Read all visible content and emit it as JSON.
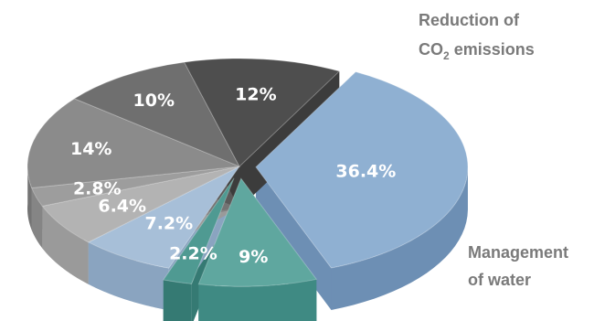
{
  "chart_data": {
    "type": "pie",
    "title": "",
    "style": "3d exploded pie",
    "slices": [
      {
        "value": 36.4,
        "label": "36.4%",
        "color": "#8fb0d2",
        "side_color": "#6d8fb4"
      },
      {
        "value": 9,
        "label": "9%",
        "color": "#5fa79f",
        "side_color": "#3f8a83"
      },
      {
        "value": 2.2,
        "label": "2.2%",
        "color": "#4f9a92",
        "side_color": "#357a73"
      },
      {
        "value": 7.2,
        "label": "7.2%",
        "color": "#a7bfd8",
        "side_color": "#8aa4c0"
      },
      {
        "value": 6.4,
        "label": "6.4%",
        "color": "#b3b3b3",
        "side_color": "#9a9a9a"
      },
      {
        "value": 2.8,
        "label": "2.8%",
        "color": "#9d9d9d",
        "side_color": "#858585"
      },
      {
        "value": 14,
        "label": "14%",
        "color": "#8b8b8b",
        "side_color": "#747474"
      },
      {
        "value": 10,
        "label": "10%",
        "color": "#6f6f6f",
        "side_color": "#5a5a5a"
      },
      {
        "value": 12,
        "label": "12%",
        "color": "#4e4e4e",
        "side_color": "#3c3c3c"
      }
    ],
    "category_labels": {
      "reduction": {
        "line1": "Reduction of",
        "line2_prefix": "CO",
        "line2_sub": "2",
        "line2_suffix": " emissions"
      },
      "water": {
        "line1": "Management",
        "line2": "of water"
      }
    }
  }
}
